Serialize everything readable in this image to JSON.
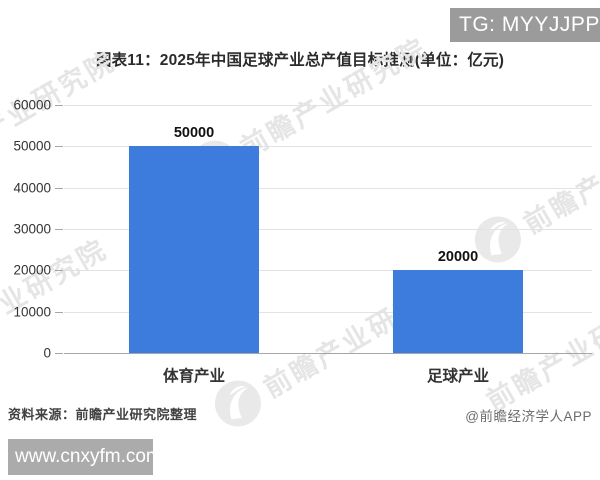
{
  "header": {
    "tg_badge": "TG: MYYJJPP"
  },
  "chart_data": {
    "type": "bar",
    "title": "图表11：2025年中国足球产业总产值目标推测(单位：亿元)",
    "categories": [
      "体育产业",
      "足球产业"
    ],
    "values": [
      50000,
      20000
    ],
    "value_labels": [
      "50000",
      "20000"
    ],
    "ylim": [
      0,
      60000
    ],
    "yticks": [
      0,
      10000,
      20000,
      30000,
      40000,
      50000,
      60000
    ],
    "grid": true,
    "legend_position": "none",
    "bar_color": "#3d7cdd",
    "xlabel": "",
    "ylabel": ""
  },
  "watermark": {
    "text": "前瞻产业研究院"
  },
  "footer": {
    "source": "资料来源：前瞻产业研究院整理",
    "credit": "@前瞻经济学人APP",
    "site_badge": "www.cnxyfm.com"
  },
  "colors": {
    "badge_top_bg": "#9b9b9b",
    "badge_bottom_bg": "#ababab",
    "grid_line": "#e2e2e2",
    "axis_line": "#a6a6a6",
    "bar": "#3d7cdd"
  }
}
